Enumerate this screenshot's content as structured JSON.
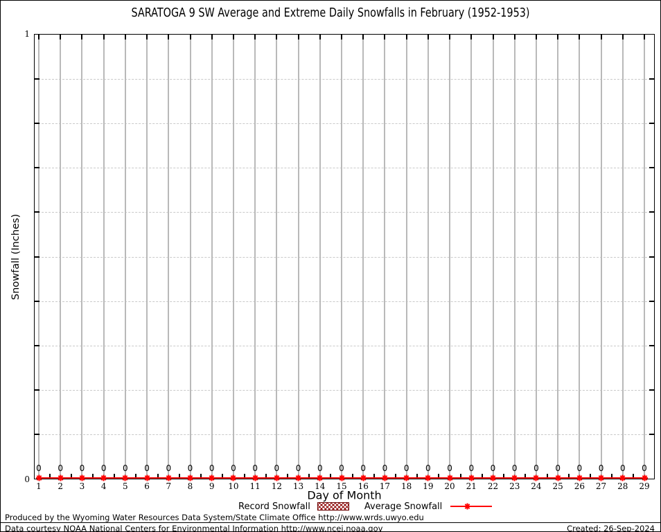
{
  "chart_data": {
    "type": "line",
    "title": "SARATOGA 9 SW Average and Extreme Daily Snowfalls in February (1952-1953)",
    "xlabel": "Day of Month",
    "ylabel": "Snowfall (Inches)",
    "x": [
      1,
      2,
      3,
      4,
      5,
      6,
      7,
      8,
      9,
      10,
      11,
      12,
      13,
      14,
      15,
      16,
      17,
      18,
      19,
      20,
      21,
      22,
      23,
      24,
      25,
      26,
      27,
      28,
      29
    ],
    "ylim": [
      0,
      1
    ],
    "y_axis": {
      "top_label": "1",
      "bottom_label": "0"
    },
    "y_grid_interval": 0.1,
    "grid": {
      "vertical": "solid",
      "horizontal": "dashed"
    },
    "legend_position": "bottom-center",
    "point_value_labels_visible": true,
    "series": [
      {
        "name": "Record Snowfall",
        "style": "hatched-box",
        "color": "#8b0000",
        "values": [
          0,
          0,
          0,
          0,
          0,
          0,
          0,
          0,
          0,
          0,
          0,
          0,
          0,
          0,
          0,
          0,
          0,
          0,
          0,
          0,
          0,
          0,
          0,
          0,
          0,
          0,
          0,
          0,
          0
        ]
      },
      {
        "name": "Average Snowfall",
        "style": "line-with-point-markers",
        "color": "#ff0000",
        "values": [
          0,
          0,
          0,
          0,
          0,
          0,
          0,
          0,
          0,
          0,
          0,
          0,
          0,
          0,
          0,
          0,
          0,
          0,
          0,
          0,
          0,
          0,
          0,
          0,
          0,
          0,
          0,
          0,
          0
        ]
      }
    ]
  },
  "footer": {
    "line1": "Produced by the Wyoming Water Resources Data System/State Climate Office http://www.wrds.uwyo.edu",
    "line2": "Data courtesy NOAA National Centers for Environmental Information http://www.ncei.noaa.gov",
    "created": "Created: 26-Sep-2024"
  },
  "colors": {
    "background": "#ffffff",
    "frame": "#000000",
    "grid_vertical": "#b9b9b9",
    "grid_horizontal": "#c9c9c9",
    "series_red": "#ff0000",
    "record_fill": "#8b0000"
  }
}
